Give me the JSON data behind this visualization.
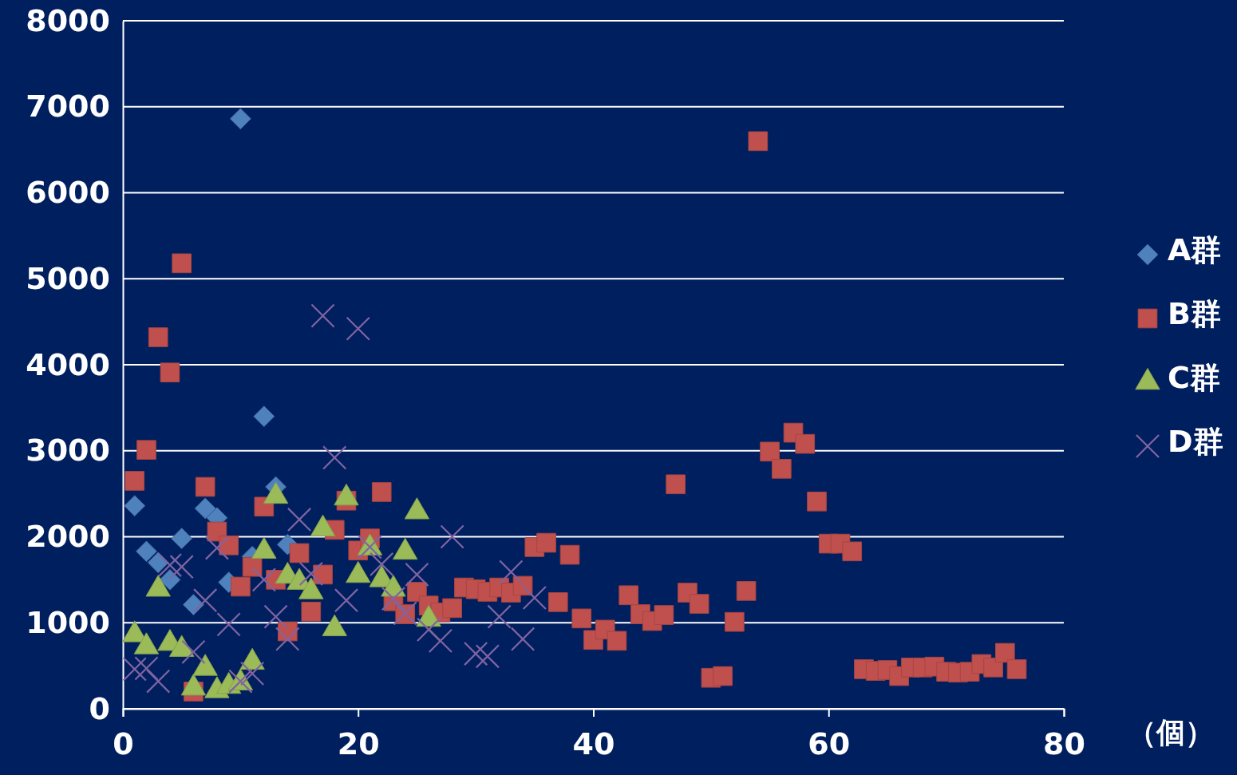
{
  "chart_data": {
    "type": "scatter",
    "xlabel": "（個）",
    "xlim": [
      0,
      80
    ],
    "xticks": [
      0,
      20,
      40,
      60,
      80
    ],
    "ylim": [
      0,
      8000
    ],
    "yticks": [
      0,
      1000,
      2000,
      3000,
      4000,
      5000,
      6000,
      7000,
      8000
    ],
    "grid": "y",
    "legend": "right",
    "series": [
      {
        "name": "A群",
        "color": "#4f81bd",
        "marker": "diamond",
        "x": [
          1,
          2,
          3,
          4,
          5,
          6,
          7,
          8,
          9,
          10,
          11,
          12,
          13,
          14
        ],
        "values": [
          2360,
          1830,
          1700,
          1500,
          1980,
          1210,
          2330,
          2220,
          1470,
          6860,
          1770,
          3400,
          2580,
          1910
        ]
      },
      {
        "name": "B群",
        "color": "#c0504d",
        "marker": "square",
        "x": [
          1,
          2,
          3,
          4,
          5,
          6,
          7,
          8,
          9,
          10,
          11,
          12,
          13,
          14,
          15,
          16,
          17,
          18,
          19,
          20,
          21,
          22,
          23,
          24,
          25,
          26,
          27,
          28,
          29,
          30,
          31,
          32,
          33,
          34,
          35,
          36,
          37,
          38,
          39,
          40,
          41,
          42,
          43,
          44,
          45,
          46,
          47,
          48,
          49,
          50,
          51,
          52,
          53,
          54,
          55,
          56,
          57,
          58,
          59,
          60,
          61,
          62,
          63,
          64,
          65,
          66,
          67,
          68,
          69,
          70,
          71,
          72,
          73,
          74,
          75,
          76
        ],
        "values": [
          2650,
          3010,
          4320,
          3910,
          5180,
          200,
          2580,
          2060,
          1900,
          1420,
          1650,
          2350,
          1500,
          900,
          1810,
          1130,
          1560,
          2080,
          2420,
          1840,
          1980,
          2520,
          1250,
          1100,
          1360,
          1200,
          1120,
          1170,
          1410,
          1390,
          1360,
          1410,
          1350,
          1430,
          1880,
          1930,
          1240,
          1790,
          1050,
          800,
          920,
          790,
          1320,
          1100,
          1020,
          1090,
          2610,
          1350,
          1220,
          360,
          380,
          1010,
          1370,
          6600,
          2990,
          2790,
          3210,
          3080,
          2410,
          1920,
          1920,
          1830,
          460,
          440,
          450,
          380,
          480,
          480,
          490,
          430,
          420,
          430,
          520,
          480,
          650,
          460
        ]
      },
      {
        "name": "C群",
        "color": "#9bbb59",
        "marker": "triangle",
        "x": [
          1,
          2,
          3,
          4,
          5,
          6,
          7,
          8,
          9,
          10,
          11,
          12,
          13,
          14,
          15,
          16,
          17,
          18,
          19,
          20,
          21,
          22,
          23,
          24,
          25,
          26
        ],
        "values": [
          860,
          720,
          1390,
          760,
          690,
          240,
          470,
          210,
          260,
          300,
          540,
          1830,
          2470,
          1540,
          1470,
          1360,
          2090,
          930,
          2450,
          1550,
          1870,
          1500,
          1390,
          1820,
          2290,
          1040
        ]
      },
      {
        "name": "D群",
        "color": "#8064a2",
        "marker": "cross",
        "x": [
          1,
          2,
          3,
          4,
          5,
          6,
          7,
          8,
          9,
          10,
          11,
          12,
          13,
          14,
          15,
          16,
          17,
          18,
          19,
          20,
          21,
          22,
          23,
          24,
          25,
          26,
          27,
          28,
          30,
          31,
          32,
          33,
          34,
          35
        ],
        "values": [
          460,
          470,
          320,
          1670,
          1650,
          660,
          1260,
          1870,
          980,
          320,
          410,
          1500,
          1070,
          810,
          2200,
          1570,
          4570,
          2920,
          1260,
          4420,
          1880,
          1680,
          1280,
          1110,
          1560,
          920,
          790,
          2000,
          640,
          610,
          1070,
          1590,
          810,
          1290
        ]
      }
    ]
  }
}
